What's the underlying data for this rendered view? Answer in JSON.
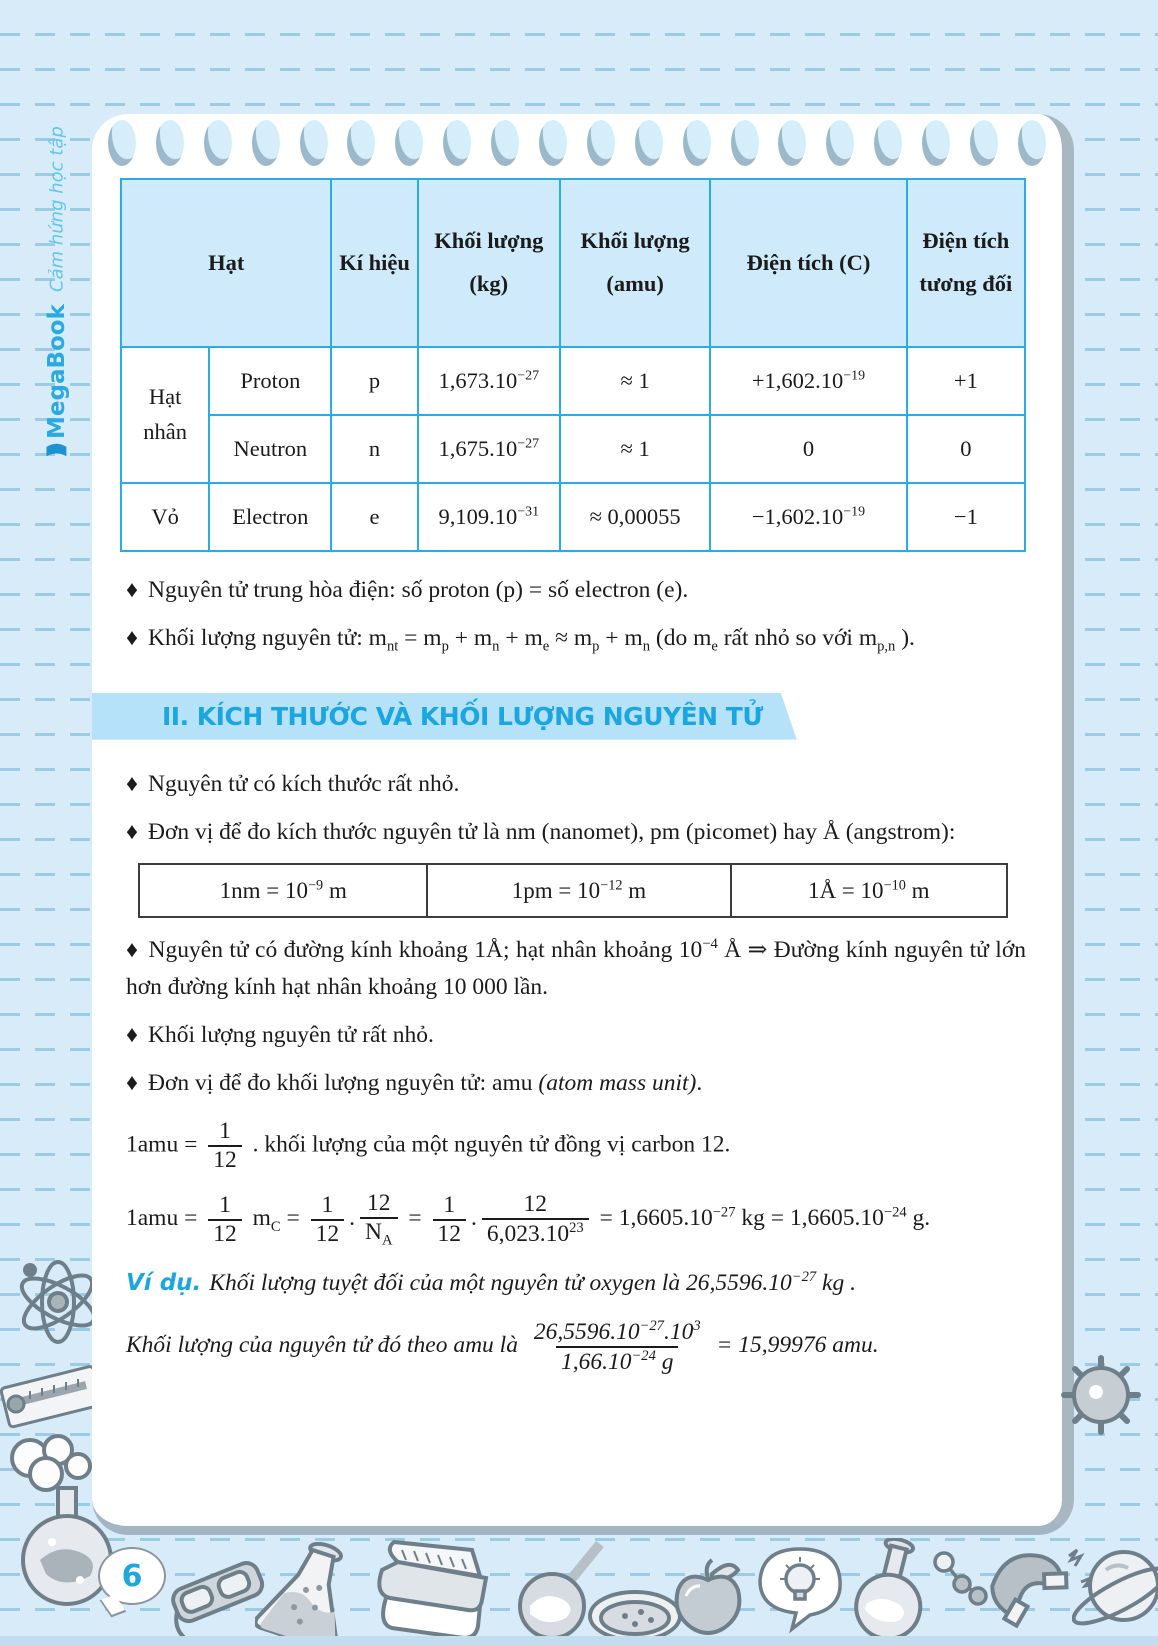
{
  "brand": {
    "name": "MegaBook",
    "tagline": "Cảm hứng học tập",
    "logo_mark": ")))"
  },
  "page_number": "6",
  "glyphs": {
    "bullet": "♦"
  },
  "particle_table": {
    "col_headers": [
      "Hạt",
      "Kí hiệu",
      "Khối lượng (kg)",
      "Khối lượng (amu)",
      "Điện tích (C)",
      "Điện tích tương đối"
    ],
    "rows": [
      {
        "group": "Hạt nhân",
        "group_rowspan": 2,
        "name": "Proton",
        "symbol": "p",
        "mass_kg": "1,673.10^−27^",
        "mass_amu": "≈ 1",
        "charge_c": "+1,602.10^−19^",
        "relative_charge": "+1"
      },
      {
        "group": null,
        "name": "Neutron",
        "symbol": "n",
        "mass_kg": "1,675.10^−27^",
        "mass_amu": "≈ 1",
        "charge_c": "0",
        "relative_charge": "0"
      },
      {
        "group": "Vỏ",
        "group_rowspan": 1,
        "name": "Electron",
        "symbol": "e",
        "mass_kg": "9,109.10^−31^",
        "mass_amu": "≈ 0,00055",
        "charge_c": "−1,602.10^−19^",
        "relative_charge": "−1"
      }
    ]
  },
  "notes": {
    "neutral": "Nguyên tử trung hòa điện: số proton (p) = số electron (e).",
    "mass": "Khối lượng nguyên tử: m~nt~ = m~p~ + m~n~ + m~e~ ≈ m~p~ + m~n~ (do m~e~ rất nhỏ so với m~p,n~ )."
  },
  "section2": {
    "title": "II. KÍCH THƯỚC VÀ KHỐI LƯỢNG NGUYÊN TỬ",
    "bullet_size": "Nguyên tử có kích thước rất nhỏ.",
    "bullet_units": "Đơn vị để đo kích thước nguyên tử là nm (nanomet), pm (picomet) hay Å (angstrom):",
    "unit_cells": [
      "1nm = 10^−9^ m",
      "1pm = 10^−12^ m",
      "1Å = 10^−10^ m"
    ],
    "bullet_diameter": "Nguyên tử có đường kính khoảng 1Å; hạt nhân khoảng 10^−4^ Å ⇒ Đường kính nguyên tử lớn hơn đường kính hạt nhân khoảng 10 000 lần.",
    "bullet_mass_small": "Khối lượng nguyên tử rất nhỏ.",
    "bullet_amu": "Đơn vị để đo khối lượng nguyên tử: amu *(atom mass unit)*.",
    "amu_def": "1amu = {frac|1|12} . khối lượng của một nguyên tử đồng vị carbon 12.",
    "amu_calc": "1amu = {frac|1|12} m~C~ = {frac|1|12}.{frac|12|N~A~} = {frac|1|12}.{frac|12|6,023.10^23^} = 1,6605.10^−27^ kg = 1,6605.10^−24^ g.",
    "example_label": "Ví dụ.",
    "example_text": "Khối lượng tuyệt đối của một nguyên tử oxygen là 26,5596.10^−27^ kg .",
    "example_calc": "Khối lượng của nguyên tử đó theo amu là {frac|26,5596.10^−27^.10^3^|1,66.10^−24^ g} = 15,99976 amu."
  },
  "illustrations": [
    "smoking-flask",
    "atom",
    "thermometer",
    "smoke-cloud",
    "goggles",
    "erlenmeyer-flask",
    "books",
    "ladle-flask",
    "petri-dish",
    "apple",
    "lightbulb-bubble",
    "round-flask",
    "molecule",
    "magnet",
    "planet",
    "virus"
  ]
}
